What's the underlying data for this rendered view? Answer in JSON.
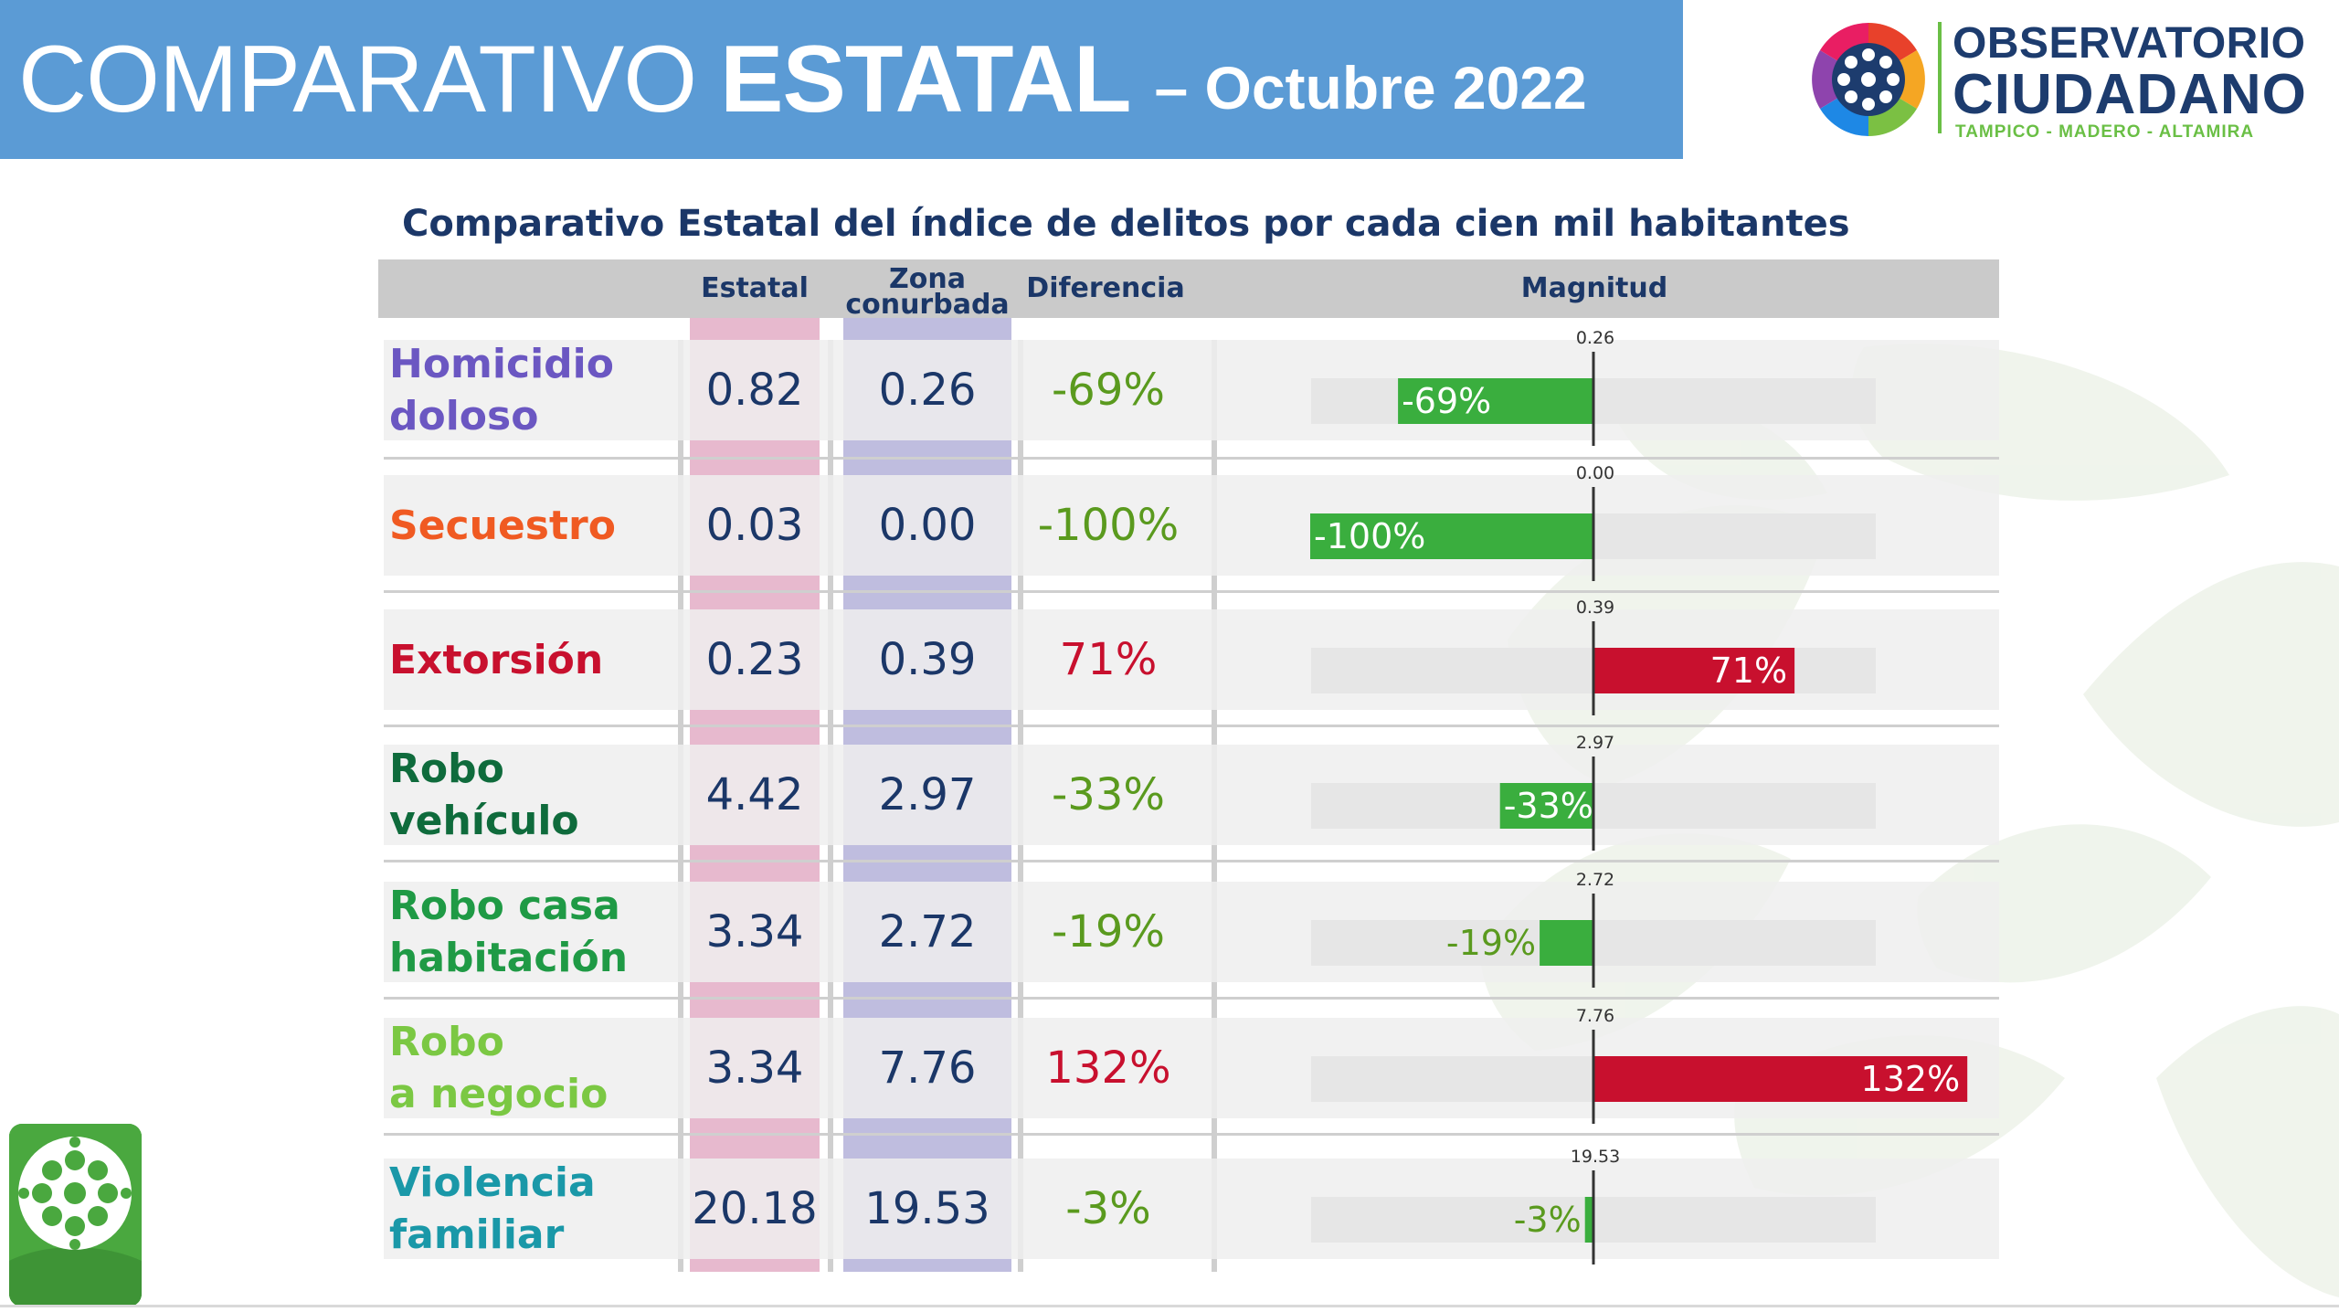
{
  "header": {
    "title_normal": "COMPARATIVO",
    "title_bold": "ESTATAL",
    "title_date": "– Octubre 2022"
  },
  "logo": {
    "line1": "OBSERVATORIO",
    "line2": "CIUDADANO",
    "line3": "TAMPICO - MADERO - ALTAMIRA"
  },
  "chart_data": {
    "type": "table",
    "title": "Comparativo Estatal del índice de delitos por cada cien mil habitantes",
    "columns": [
      "",
      "Estatal",
      "Zona conurbada",
      "Diferencia",
      "Magnitud"
    ],
    "colors": {
      "positive_bar": "#c8102e",
      "negative_bar": "#3aae3e",
      "estatal_band": "#e3adc5",
      "zona_band": "#b4b2d9",
      "header_bg": "#cacaca",
      "banner": "#5b9bd5"
    },
    "rows": [
      {
        "crime": "Homicidio doloso",
        "color": "#6b57c2",
        "estatal": "0.82",
        "zona": "0.26",
        "diferencia": "-69%",
        "diff_value": -69,
        "diff_color": "#5a9a1e",
        "bar_label": "-69%",
        "mag_label": "0.26"
      },
      {
        "crime": "Secuestro",
        "color": "#f05a22",
        "estatal": "0.03",
        "zona": "0.00",
        "diferencia": "-100%",
        "diff_value": -100,
        "diff_color": "#5a9a1e",
        "bar_label": "-100%",
        "mag_label": "0.00"
      },
      {
        "crime": "Extorsión",
        "color": "#c8102e",
        "estatal": "0.23",
        "zona": "0.39",
        "diferencia": "71%",
        "diff_value": 71,
        "diff_color": "#c8102e",
        "bar_label": "71%",
        "mag_label": "0.39"
      },
      {
        "crime": "Robo vehículo",
        "color": "#0f6b3c",
        "estatal": "4.42",
        "zona": "2.97",
        "diferencia": "-33%",
        "diff_value": -33,
        "diff_color": "#5a9a1e",
        "bar_label": "-33%",
        "mag_label": "2.97"
      },
      {
        "crime": "Robo casa habitación",
        "color": "#1f9a45",
        "estatal": "3.34",
        "zona": "2.72",
        "diferencia": "-19%",
        "diff_value": -19,
        "diff_color": "#5a9a1e",
        "bar_label": "-19%",
        "mag_label": "2.72"
      },
      {
        "crime": "Robo a negocio",
        "color": "#7bc843",
        "estatal": "3.34",
        "zona": "7.76",
        "diferencia": "132%",
        "diff_value": 132,
        "diff_color": "#c8102e",
        "bar_label": "132%",
        "mag_label": "7.76"
      },
      {
        "crime": "Violencia familiar",
        "color": "#1a98a8",
        "estatal": "20.18",
        "zona": "19.53",
        "diferencia": "-3%",
        "diff_value": -3,
        "diff_color": "#5a9a1e",
        "bar_label": "-3%",
        "mag_label": "19.53"
      }
    ],
    "crime_lines": [
      [
        "Homicidio",
        "doloso"
      ],
      [
        "Secuestro"
      ],
      [
        "Extorsión"
      ],
      [
        "Robo",
        "vehículo"
      ],
      [
        "Robo casa",
        "habitación"
      ],
      [
        "Robo",
        "a negocio"
      ],
      [
        "Violencia",
        "familiar"
      ]
    ]
  }
}
